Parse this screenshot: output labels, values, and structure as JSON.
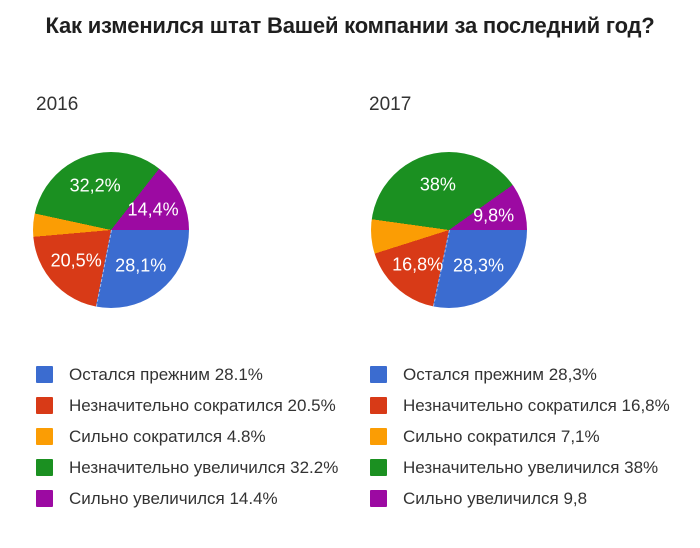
{
  "title": "Как изменился штат Вашей компании за последний год?",
  "palette": {
    "blue": "#3B6CD0",
    "red": "#D83A17",
    "orange": "#FB9D04",
    "green": "#1B9021",
    "purple": "#9C0AA2"
  },
  "chart_data": [
    {
      "type": "pie",
      "title": "2016",
      "categories": [
        "Остался прежним",
        "Незначительно сократился",
        "Сильно сократился",
        "Незначительно увеличился",
        "Сильно увеличился"
      ],
      "values": [
        28.1,
        20.5,
        4.8,
        32.2,
        14.4
      ],
      "colors": [
        "#3B6CD0",
        "#D83A17",
        "#FB9D04",
        "#1B9021",
        "#9C0AA2"
      ],
      "slice_labels": [
        "28,1%",
        "20,5%",
        "",
        "32,2%",
        "14,4%"
      ],
      "legend_items": [
        "Остался прежним 28.1%",
        "Незначительно сократился 20.5%",
        "Сильно сократился 4.8%",
        "Незначительно увеличился 32.2%",
        "Сильно увеличился 14.4%"
      ],
      "legend_position": "bottom",
      "start_angle": "3-oclock-clockwise"
    },
    {
      "type": "pie",
      "title": "2017",
      "categories": [
        "Остался прежним",
        "Незначительно сократился",
        "Сильно сократился",
        "Незначительно увеличился",
        "Сильно увеличился"
      ],
      "values": [
        28.3,
        16.8,
        7.1,
        38,
        9.8
      ],
      "colors": [
        "#3B6CD0",
        "#D83A17",
        "#FB9D04",
        "#1B9021",
        "#9C0AA2"
      ],
      "slice_labels": [
        "28,3%",
        "16,8%",
        "",
        "38%",
        "9,8%"
      ],
      "legend_items": [
        "Остался прежним 28,3%",
        "Незначительно сократился 16,8%",
        "Сильно сократился 7,1%",
        "Незначительно увеличился 38%",
        "Сильно увеличился 9,8"
      ],
      "legend_position": "bottom",
      "start_angle": "3-oclock-clockwise"
    }
  ]
}
